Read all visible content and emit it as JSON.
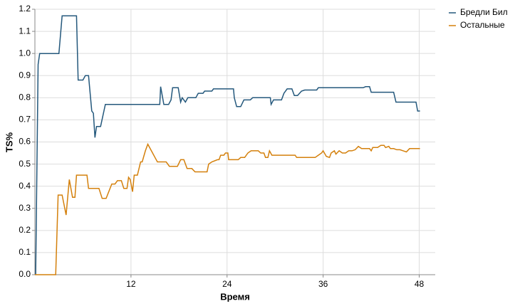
{
  "chart_data": {
    "type": "line",
    "x_label": "Время",
    "y_label": "TS%",
    "xlim": [
      0,
      50
    ],
    "xticks": [
      12,
      24,
      36,
      48
    ],
    "ylim": [
      0,
      1.2
    ],
    "yticks": [
      {
        "value": 0,
        "label": "0.0"
      },
      0.1,
      0.2,
      0.3,
      0.4,
      0.5,
      0.6,
      0.7,
      0.8,
      0.9,
      {
        "value": 1,
        "label": "1.0"
      },
      1.1,
      1.2
    ],
    "grid": true,
    "legend": "top-right-outside",
    "series": [
      {
        "name": "Бредли Бил",
        "color": "#24587c",
        "x": [
          0.1,
          0.4,
          0.6,
          3.0,
          3.4,
          5.2,
          5.4,
          6.0,
          6.3,
          6.7,
          7.1,
          7.3,
          7.5,
          7.7,
          8.2,
          8.8,
          15.6,
          15.7,
          16.1,
          16.7,
          17.0,
          17.2,
          17.9,
          18.2,
          18.4,
          18.8,
          19.1,
          20.1,
          20.4,
          21.0,
          21.2,
          22.1,
          22.3,
          24.8,
          24.9,
          25.2,
          25.7,
          26.1,
          26.9,
          27.2,
          29.4,
          29.5,
          29.8,
          30.8,
          31.1,
          31.5,
          32.1,
          32.4,
          32.8,
          33.3,
          33.7,
          35.2,
          35.4,
          41.0,
          41.3,
          41.8,
          42.0,
          44.8,
          45.1,
          47.6,
          47.8,
          48.1
        ],
        "values": [
          0,
          0.95,
          1.0,
          1.0,
          1.17,
          1.17,
          0.88,
          0.88,
          0.9,
          0.9,
          0.74,
          0.73,
          0.62,
          0.67,
          0.67,
          0.77,
          0.77,
          0.85,
          0.77,
          0.77,
          0.79,
          0.845,
          0.845,
          0.78,
          0.8,
          0.78,
          0.8,
          0.8,
          0.82,
          0.82,
          0.83,
          0.83,
          0.84,
          0.84,
          0.8,
          0.76,
          0.76,
          0.79,
          0.79,
          0.8,
          0.8,
          0.77,
          0.79,
          0.79,
          0.82,
          0.84,
          0.84,
          0.81,
          0.81,
          0.83,
          0.835,
          0.835,
          0.845,
          0.845,
          0.85,
          0.85,
          0.825,
          0.825,
          0.78,
          0.78,
          0.74,
          0.74
        ]
      },
      {
        "name": "Остальные",
        "color": "#d4800c",
        "x": [
          0,
          2.6,
          2.9,
          3.4,
          3.9,
          4.3,
          4.7,
          5.0,
          5.2,
          6.5,
          6.7,
          8.0,
          8.4,
          8.9,
          9.6,
          10.0,
          10.3,
          10.8,
          11.1,
          11.5,
          11.7,
          11.9,
          12.2,
          12.4,
          12.8,
          13.2,
          13.4,
          13.8,
          14.1,
          14.7,
          15.0,
          15.3,
          16.4,
          16.8,
          17.8,
          18.2,
          18.6,
          19.0,
          19.6,
          20.0,
          21.5,
          21.7,
          22.1,
          22.8,
          23.0,
          23.2,
          23.6,
          23.8,
          24.1,
          24.2,
          25.4,
          25.7,
          26.2,
          26.6,
          27.0,
          27.9,
          28.2,
          28.6,
          28.8,
          29.1,
          29.3,
          29.6,
          32.5,
          32.7,
          35.0,
          35.4,
          35.8,
          36.0,
          36.4,
          36.8,
          37.0,
          37.4,
          37.6,
          38.0,
          38.4,
          38.8,
          39.2,
          39.6,
          40.0,
          40.4,
          40.8,
          41.2,
          41.8,
          42.0,
          42.2,
          42.8,
          43.2,
          43.6,
          43.8,
          44.2,
          44.4,
          44.8,
          45.2,
          45.6,
          46.0,
          46.4,
          46.8,
          48.1
        ],
        "values": [
          0,
          0,
          0.36,
          0.36,
          0.27,
          0.43,
          0.35,
          0.35,
          0.45,
          0.45,
          0.39,
          0.39,
          0.345,
          0.345,
          0.41,
          0.41,
          0.425,
          0.425,
          0.39,
          0.39,
          0.44,
          0.43,
          0.375,
          0.45,
          0.45,
          0.51,
          0.51,
          0.56,
          0.59,
          0.55,
          0.53,
          0.51,
          0.51,
          0.49,
          0.49,
          0.52,
          0.52,
          0.48,
          0.48,
          0.465,
          0.465,
          0.5,
          0.51,
          0.52,
          0.52,
          0.54,
          0.54,
          0.55,
          0.55,
          0.52,
          0.52,
          0.53,
          0.53,
          0.55,
          0.56,
          0.56,
          0.55,
          0.55,
          0.53,
          0.53,
          0.56,
          0.54,
          0.54,
          0.53,
          0.53,
          0.54,
          0.55,
          0.56,
          0.535,
          0.53,
          0.55,
          0.56,
          0.545,
          0.56,
          0.55,
          0.55,
          0.56,
          0.56,
          0.565,
          0.58,
          0.57,
          0.57,
          0.57,
          0.56,
          0.575,
          0.575,
          0.585,
          0.585,
          0.575,
          0.58,
          0.57,
          0.57,
          0.565,
          0.565,
          0.56,
          0.555,
          0.57,
          0.57
        ]
      }
    ]
  }
}
